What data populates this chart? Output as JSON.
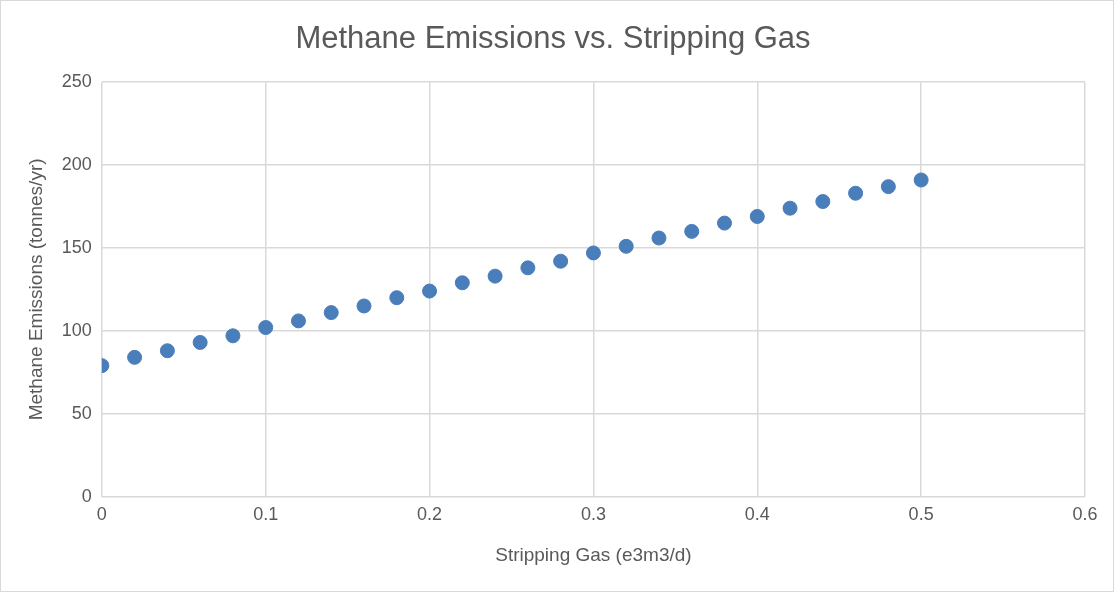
{
  "chart_data": {
    "type": "scatter",
    "title": "Methane Emissions vs. Stripping Gas",
    "xlabel": "Stripping Gas (e3m3/d)",
    "ylabel": "Methane Emissions (tonnes/yr)",
    "x": [
      0,
      0.02,
      0.04,
      0.06,
      0.08,
      0.1,
      0.12,
      0.14,
      0.16,
      0.18,
      0.2,
      0.22,
      0.24,
      0.26,
      0.28,
      0.3,
      0.32,
      0.34,
      0.36,
      0.38,
      0.4,
      0.42,
      0.44,
      0.46,
      0.48,
      0.5
    ],
    "values": [
      79,
      84,
      88,
      93,
      97,
      102,
      106,
      111,
      115,
      120,
      124,
      129,
      133,
      138,
      142,
      147,
      151,
      156,
      160,
      165,
      169,
      174,
      178,
      183,
      187,
      191
    ],
    "color": "#4a7ebb",
    "marker": "circle",
    "xlim": [
      0,
      0.6
    ],
    "xticks": [
      0,
      0.1,
      0.2,
      0.3,
      0.4,
      0.5,
      0.6
    ],
    "ylim": [
      0,
      250
    ],
    "yticks": [
      0,
      50,
      100,
      150,
      200,
      250
    ],
    "grid": true,
    "legend": false
  }
}
